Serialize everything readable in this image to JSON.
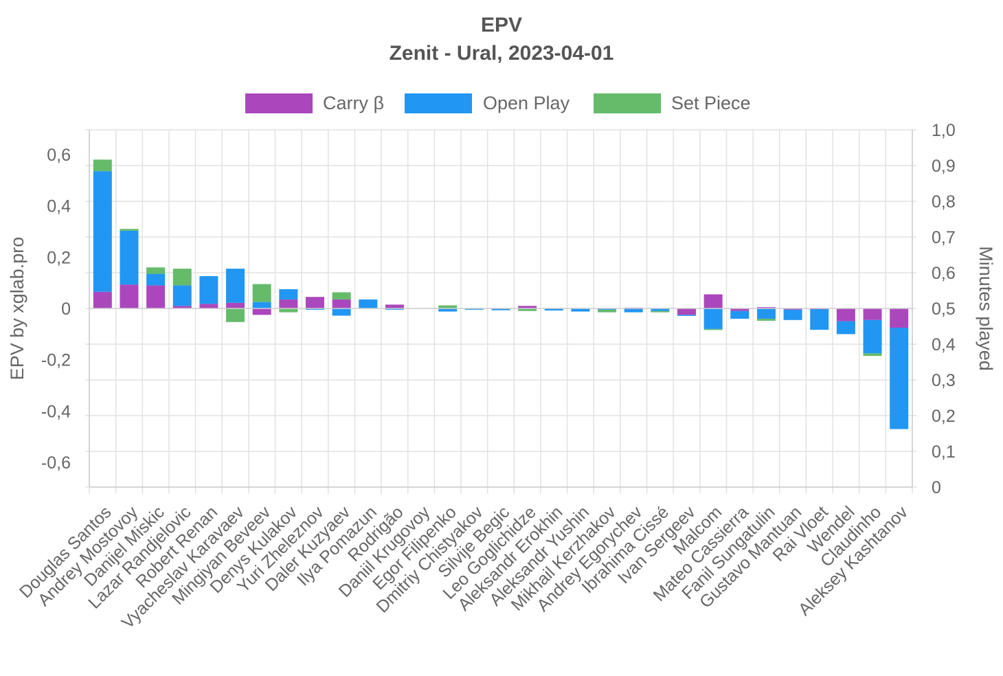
{
  "chart_data": {
    "type": "bar",
    "stacked": true,
    "title": "EPV",
    "subtitle": "Zenit - Ural, 2023-04-01",
    "ylabel": "EPV  by xglab.pro",
    "y2label": "Minutes played",
    "ylim": [
      -0.7,
      0.7
    ],
    "y_ticks": [
      "0,6",
      "0,4",
      "0,2",
      "0",
      "-0,2",
      "-0,4",
      "-0,6"
    ],
    "y_tick_values": [
      0.6,
      0.4,
      0.2,
      0,
      -0.2,
      -0.4,
      -0.6
    ],
    "y2lim": [
      0,
      1.0
    ],
    "y2_ticks": [
      "1,0",
      "0,9",
      "0,8",
      "0,7",
      "0,6",
      "0,5",
      "0,4",
      "0,3",
      "0,2",
      "0,1",
      "0"
    ],
    "y2_tick_values": [
      1.0,
      0.9,
      0.8,
      0.7,
      0.6,
      0.5,
      0.4,
      0.3,
      0.2,
      0.1,
      0
    ],
    "grid": true,
    "legend_position": "top",
    "categories": [
      "Douglas Santos",
      "Andrey Mostovoy",
      "Danijel Miskic",
      "Lazar Randjelovic",
      "Robert Renan",
      "Vyacheslav Karavaev",
      "Mingiyan Beveev",
      "Denys Kulakov",
      "Yuri Zheleznov",
      "Daler Kuzyaev",
      "Ilya Pomazun",
      "Rodrigão",
      "Daniil Krugovoy",
      "Egor Filipenko",
      "Dmitriy Chistyakov",
      "Silvije Begic",
      "Leo Goglichidze",
      "Aleksandr Erokhin",
      "Aleksandr Yushin",
      "Mikhail Kerzhakov",
      "Andrey Egorychev",
      "Ibrahima Cissé",
      "Ivan Sergeev",
      "Malcom",
      "Mateo Cassierra",
      "Fanil Sungatulin",
      "Gustavo Mantuan",
      "Rai Vloet",
      "Wendel",
      "Claudinho",
      "Aleksey Kashtanov"
    ],
    "series": [
      {
        "name": "Carry β",
        "color": "#ab47bc",
        "values": [
          0.065,
          0.093,
          0.09,
          0.01,
          0.018,
          0.022,
          -0.025,
          0.035,
          0.045,
          0.035,
          0,
          0.015,
          0,
          0,
          0,
          0,
          0.01,
          0,
          0,
          0,
          0.003,
          0,
          -0.025,
          0.055,
          -0.01,
          0.005,
          -0.005,
          -0.003,
          -0.05,
          -0.045,
          -0.075
        ]
      },
      {
        "name": "Open Play",
        "color": "#2196f3",
        "values": [
          0.47,
          0.21,
          0.045,
          0.08,
          0.108,
          0.133,
          0.025,
          0.04,
          -0.005,
          -0.028,
          0.035,
          -0.005,
          0,
          -0.012,
          -0.005,
          -0.007,
          0,
          -0.008,
          -0.012,
          -0.005,
          -0.015,
          -0.01,
          -0.002,
          -0.08,
          -0.03,
          -0.04,
          -0.04,
          -0.08,
          -0.05,
          -0.13,
          -0.395
        ]
      },
      {
        "name": "Set Piece",
        "color": "#66bb6a",
        "values": [
          0.045,
          0.007,
          0.025,
          0.065,
          0,
          -0.053,
          0.07,
          -0.015,
          0,
          0.028,
          0,
          0,
          0,
          0.012,
          0,
          0,
          -0.01,
          0,
          0,
          -0.01,
          0,
          -0.005,
          0,
          -0.003,
          0,
          -0.008,
          0,
          0,
          0,
          -0.01,
          0
        ]
      }
    ]
  }
}
